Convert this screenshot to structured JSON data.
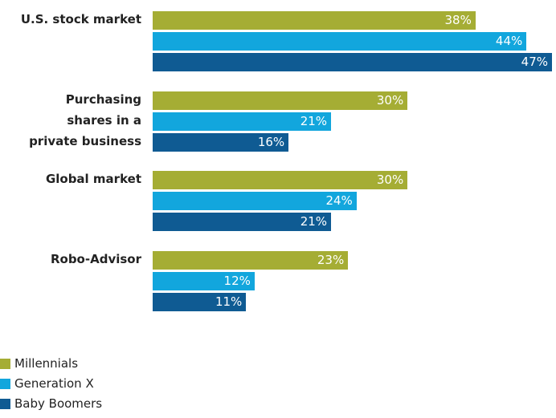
{
  "chart_data": {
    "type": "bar",
    "orientation": "horizontal",
    "categories": [
      "U.S. stock market",
      "Purchasing\nshares in a\nprivate business",
      "Global market",
      "Robo-Advisor"
    ],
    "series": [
      {
        "name": "Millennials",
        "color": "#a5ad34",
        "values": [
          38,
          30,
          30,
          23
        ],
        "value_labels": [
          "38%",
          "30%",
          "30%",
          "23%"
        ]
      },
      {
        "name": "Generation X",
        "color": "#12a6dd",
        "values": [
          44,
          21,
          24,
          12
        ],
        "value_labels": [
          "44%",
          "21%",
          "24%",
          "12%"
        ]
      },
      {
        "name": "Baby Boomers",
        "color": "#0f5b93",
        "values": [
          47,
          16,
          21,
          11
        ],
        "value_labels": [
          "47%",
          "16%",
          "21%",
          "11%"
        ]
      }
    ],
    "legend": "bottom-left"
  }
}
